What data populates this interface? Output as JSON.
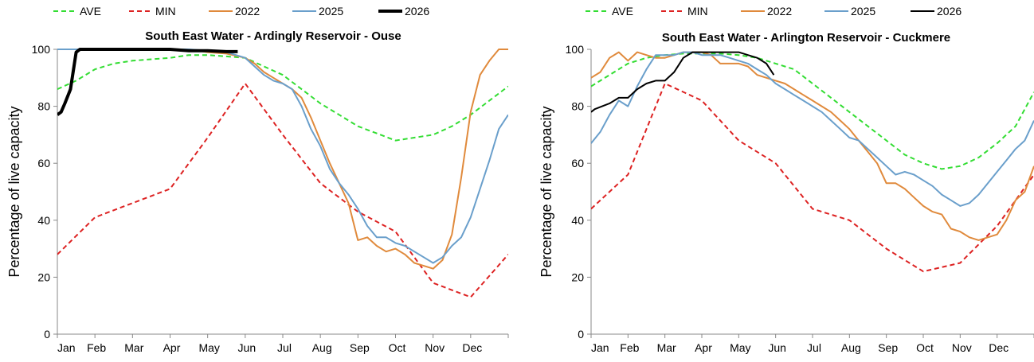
{
  "chart_data": [
    {
      "type": "line",
      "title": "South East Water - Ardingly Reservoir - Ouse",
      "ylabel": "Percentage of  live capacity",
      "xlabel": "",
      "months": [
        "Jan",
        "Feb",
        "Mar",
        "Apr",
        "May",
        "Jun",
        "Jul",
        "Aug",
        "Sep",
        "Oct",
        "Nov",
        "Dec"
      ],
      "xlim": [
        0,
        12
      ],
      "ylim": [
        0,
        100
      ],
      "yticks": [
        "0",
        "20",
        "40",
        "60",
        "80",
        "100"
      ],
      "grid": false,
      "legend_position": "top",
      "series": [
        {
          "name": "AVE",
          "color": "#33dd33",
          "dash": true,
          "width": 2,
          "x": [
            0,
            0.5,
            1,
            1.5,
            2,
            2.5,
            3,
            3.5,
            4,
            4.5,
            5,
            5.5,
            6,
            6.5,
            7,
            7.5,
            8,
            8.5,
            9,
            9.5,
            10,
            10.5,
            11,
            11.5,
            12
          ],
          "y": [
            86,
            89,
            93,
            95,
            96,
            96.5,
            97,
            98,
            98,
            97.5,
            97,
            94,
            91,
            86,
            81,
            77,
            73,
            70.5,
            68,
            69,
            70,
            73,
            77,
            82,
            87
          ]
        },
        {
          "name": "MIN",
          "color": "#dd2222",
          "dash": true,
          "width": 2,
          "x": [
            0,
            1,
            2,
            3,
            4,
            5,
            6,
            7,
            8,
            9,
            10,
            11,
            12
          ],
          "y": [
            28,
            41,
            46,
            51,
            69,
            88,
            70,
            53,
            43,
            36,
            18,
            13,
            28
          ]
        },
        {
          "name": "2022",
          "color": "#e08a3c",
          "dash": false,
          "width": 2,
          "x": [
            0,
            0.5,
            1,
            1.5,
            2,
            2.5,
            3,
            3.5,
            4,
            4.5,
            5,
            5.25,
            5.5,
            5.75,
            6,
            6.25,
            6.5,
            6.75,
            7,
            7.25,
            7.5,
            7.75,
            8,
            8.25,
            8.5,
            8.75,
            9,
            9.25,
            9.5,
            9.75,
            10,
            10.25,
            10.5,
            10.75,
            11,
            11.25,
            11.5,
            11.75,
            12
          ],
          "y": [
            100,
            100,
            100,
            100,
            100,
            100,
            100,
            100,
            99,
            98.5,
            97,
            95,
            92,
            90,
            88,
            86,
            83,
            76,
            68,
            60,
            53,
            46,
            33,
            34,
            31,
            29,
            30,
            28,
            25,
            24,
            23,
            26,
            35,
            55,
            78,
            91,
            96,
            100,
            100
          ]
        },
        {
          "name": "2025",
          "color": "#6a9fcb",
          "dash": false,
          "width": 2,
          "x": [
            0,
            0.5,
            1,
            1.5,
            2,
            2.5,
            3,
            3.5,
            4,
            4.5,
            5,
            5.25,
            5.5,
            5.75,
            6,
            6.25,
            6.5,
            6.75,
            7,
            7.25,
            7.5,
            7.75,
            8,
            8.25,
            8.5,
            8.75,
            9,
            9.25,
            9.5,
            9.75,
            10,
            10.25,
            10.5,
            10.75,
            11,
            11.25,
            11.5,
            11.75,
            12
          ],
          "y": [
            100,
            100,
            100,
            100,
            100,
            100,
            100,
            100,
            99.5,
            99,
            97,
            94,
            91,
            89,
            88,
            86,
            80,
            72,
            66,
            58,
            53,
            49,
            44,
            38,
            34,
            34,
            32,
            31,
            29,
            27,
            25,
            27,
            31,
            34,
            41,
            51,
            61,
            72,
            77
          ]
        },
        {
          "name": "2026",
          "color": "#000000",
          "dash": false,
          "width": 4,
          "x": [
            0,
            0.1,
            0.2,
            0.35,
            0.5,
            0.6,
            0.8,
            1,
            1.5,
            2,
            2.5,
            3,
            3.5,
            4,
            4.5,
            4.8
          ],
          "y": [
            77,
            78,
            81,
            86,
            99,
            100,
            100,
            100,
            100,
            100,
            100,
            100,
            99.5,
            99.5,
            99.2,
            99.2
          ]
        }
      ]
    },
    {
      "type": "line",
      "title": "South East Water - Arlington Reservoir - Cuckmere",
      "ylabel": "Percentage of  live capacity",
      "xlabel": "",
      "months": [
        "Jan",
        "Feb",
        "Mar",
        "Apr",
        "May",
        "Jun",
        "Jul",
        "Aug",
        "Sep",
        "Oct",
        "Nov",
        "Dec"
      ],
      "xlim": [
        0,
        12
      ],
      "ylim": [
        0,
        100
      ],
      "yticks": [
        "0",
        "20",
        "40",
        "60",
        "80",
        "100"
      ],
      "grid": false,
      "legend_position": "top",
      "series": [
        {
          "name": "AVE",
          "color": "#33dd33",
          "dash": true,
          "width": 2,
          "x": [
            0,
            0.5,
            1,
            1.5,
            2,
            2.5,
            3,
            3.5,
            4,
            4.5,
            5,
            5.5,
            6,
            6.5,
            7,
            7.5,
            8,
            8.5,
            9,
            9.5,
            10,
            10.5,
            11,
            11.5,
            12
          ],
          "y": [
            87,
            91,
            95,
            97,
            98,
            98.5,
            98.5,
            98.5,
            98,
            97,
            95,
            93,
            88,
            83,
            78,
            73,
            68,
            63,
            60,
            58,
            59,
            62,
            67,
            73,
            85
          ]
        },
        {
          "name": "MIN",
          "color": "#dd2222",
          "dash": true,
          "width": 2,
          "x": [
            0,
            1,
            2,
            3,
            4,
            5,
            6,
            7,
            8,
            9,
            10,
            11,
            12
          ],
          "y": [
            44,
            56,
            88,
            82,
            68,
            60,
            44,
            40,
            30,
            22,
            25,
            38,
            56
          ]
        },
        {
          "name": "2022",
          "color": "#e08a3c",
          "dash": false,
          "width": 2,
          "x": [
            0,
            0.25,
            0.5,
            0.75,
            1,
            1.25,
            1.5,
            1.75,
            2,
            2.25,
            2.5,
            2.75,
            3,
            3.25,
            3.5,
            3.75,
            4,
            4.25,
            4.5,
            4.75,
            5,
            5.25,
            5.5,
            5.75,
            6,
            6.25,
            6.5,
            6.75,
            7,
            7.25,
            7.5,
            7.75,
            8,
            8.25,
            8.5,
            8.75,
            9,
            9.25,
            9.5,
            9.75,
            10,
            10.25,
            10.5,
            10.75,
            11,
            11.25,
            11.5,
            11.75,
            12
          ],
          "y": [
            90,
            92,
            97,
            99,
            96,
            99,
            98,
            97,
            97,
            98,
            99,
            99,
            99,
            98,
            95,
            95,
            95,
            94,
            91,
            90,
            89,
            88,
            86,
            84,
            82,
            80,
            78,
            75,
            72,
            68,
            64,
            60,
            53,
            53,
            51,
            48,
            45,
            43,
            42,
            37,
            36,
            34,
            33,
            34,
            35,
            40,
            47,
            50,
            59
          ]
        },
        {
          "name": "2025",
          "color": "#6a9fcb",
          "dash": false,
          "width": 2,
          "x": [
            0,
            0.25,
            0.5,
            0.75,
            1,
            1.25,
            1.5,
            1.75,
            2,
            2.25,
            2.5,
            2.75,
            3,
            3.25,
            3.5,
            3.75,
            4,
            4.25,
            4.5,
            4.75,
            5,
            5.25,
            5.5,
            5.75,
            6,
            6.25,
            6.5,
            6.75,
            7,
            7.25,
            7.5,
            7.75,
            8,
            8.25,
            8.5,
            8.75,
            9,
            9.25,
            9.5,
            9.75,
            10,
            10.25,
            10.5,
            10.75,
            11,
            11.25,
            11.5,
            11.75,
            12
          ],
          "y": [
            67,
            71,
            77,
            82,
            80,
            87,
            93,
            98,
            98,
            98,
            99,
            99,
            98,
            98,
            98,
            97,
            96,
            95,
            93,
            91,
            88,
            86,
            84,
            82,
            80,
            78,
            75,
            72,
            69,
            68,
            65,
            62,
            59,
            56,
            57,
            56,
            54,
            52,
            49,
            47,
            45,
            46,
            49,
            53,
            57,
            61,
            65,
            68,
            75
          ]
        },
        {
          "name": "2026",
          "color": "#000000",
          "dash": false,
          "width": 2,
          "x": [
            0,
            0.1,
            0.3,
            0.5,
            0.75,
            1,
            1.25,
            1.5,
            1.75,
            2,
            2.25,
            2.5,
            2.75,
            3,
            3.25,
            3.5,
            3.75,
            4,
            4.25,
            4.5,
            4.75,
            4.95
          ],
          "y": [
            78,
            79,
            80,
            81,
            83,
            83,
            86,
            88,
            89,
            89,
            92,
            97,
            99,
            99,
            99,
            99,
            99,
            99,
            98,
            97,
            95,
            91
          ]
        }
      ]
    }
  ]
}
